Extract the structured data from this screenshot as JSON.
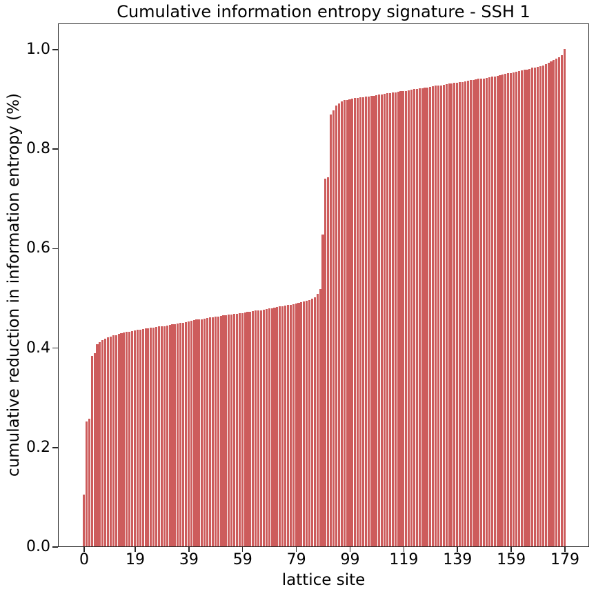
{
  "chart_data": {
    "type": "bar",
    "title": "Cumulative information entropy signature - SSH 1",
    "xlabel": "lattice site",
    "ylabel": "cumulative reduction in information entropy (%)",
    "bar_color": "#CD5C5C",
    "grid": false,
    "n_bars": 180,
    "x_index_range": [
      0,
      179
    ],
    "xticks": [
      0,
      19,
      39,
      59,
      79,
      99,
      119,
      139,
      159,
      179
    ],
    "yticks": [
      0.0,
      0.2,
      0.4,
      0.6,
      0.8,
      1.0
    ],
    "ylim": [
      0.0,
      1.053
    ],
    "values": [
      0.104,
      0.251,
      0.257,
      0.383,
      0.388,
      0.406,
      0.41,
      0.415,
      0.418,
      0.42,
      0.422,
      0.424,
      0.425,
      0.427,
      0.428,
      0.43,
      0.431,
      0.432,
      0.433,
      0.434,
      0.435,
      0.436,
      0.437,
      0.438,
      0.438,
      0.439,
      0.44,
      0.441,
      0.442,
      0.442,
      0.443,
      0.444,
      0.445,
      0.446,
      0.447,
      0.448,
      0.449,
      0.45,
      0.451,
      0.452,
      0.454,
      0.455,
      0.456,
      0.456,
      0.457,
      0.458,
      0.459,
      0.46,
      0.461,
      0.462,
      0.462,
      0.463,
      0.464,
      0.465,
      0.466,
      0.466,
      0.467,
      0.468,
      0.469,
      0.469,
      0.47,
      0.471,
      0.472,
      0.473,
      0.474,
      0.474,
      0.475,
      0.476,
      0.477,
      0.478,
      0.479,
      0.48,
      0.481,
      0.482,
      0.483,
      0.484,
      0.485,
      0.486,
      0.487,
      0.488,
      0.49,
      0.491,
      0.492,
      0.494,
      0.495,
      0.498,
      0.501,
      0.507,
      0.518,
      0.627,
      0.739,
      0.742,
      0.868,
      0.876,
      0.886,
      0.891,
      0.895,
      0.897,
      0.898,
      0.899,
      0.9,
      0.901,
      0.902,
      0.903,
      0.903,
      0.904,
      0.905,
      0.906,
      0.906,
      0.907,
      0.908,
      0.909,
      0.91,
      0.911,
      0.911,
      0.912,
      0.913,
      0.914,
      0.915,
      0.915,
      0.916,
      0.917,
      0.918,
      0.919,
      0.92,
      0.921,
      0.921,
      0.922,
      0.923,
      0.924,
      0.925,
      0.926,
      0.926,
      0.927,
      0.928,
      0.929,
      0.93,
      0.931,
      0.932,
      0.932,
      0.933,
      0.934,
      0.935,
      0.936,
      0.937,
      0.938,
      0.939,
      0.94,
      0.94,
      0.941,
      0.942,
      0.943,
      0.944,
      0.945,
      0.946,
      0.948,
      0.949,
      0.95,
      0.951,
      0.952,
      0.953,
      0.954,
      0.955,
      0.957,
      0.958,
      0.959,
      0.96,
      0.962,
      0.963,
      0.964,
      0.965,
      0.967,
      0.969,
      0.972,
      0.975,
      0.978,
      0.981,
      0.984,
      0.988,
      1.0
    ]
  }
}
